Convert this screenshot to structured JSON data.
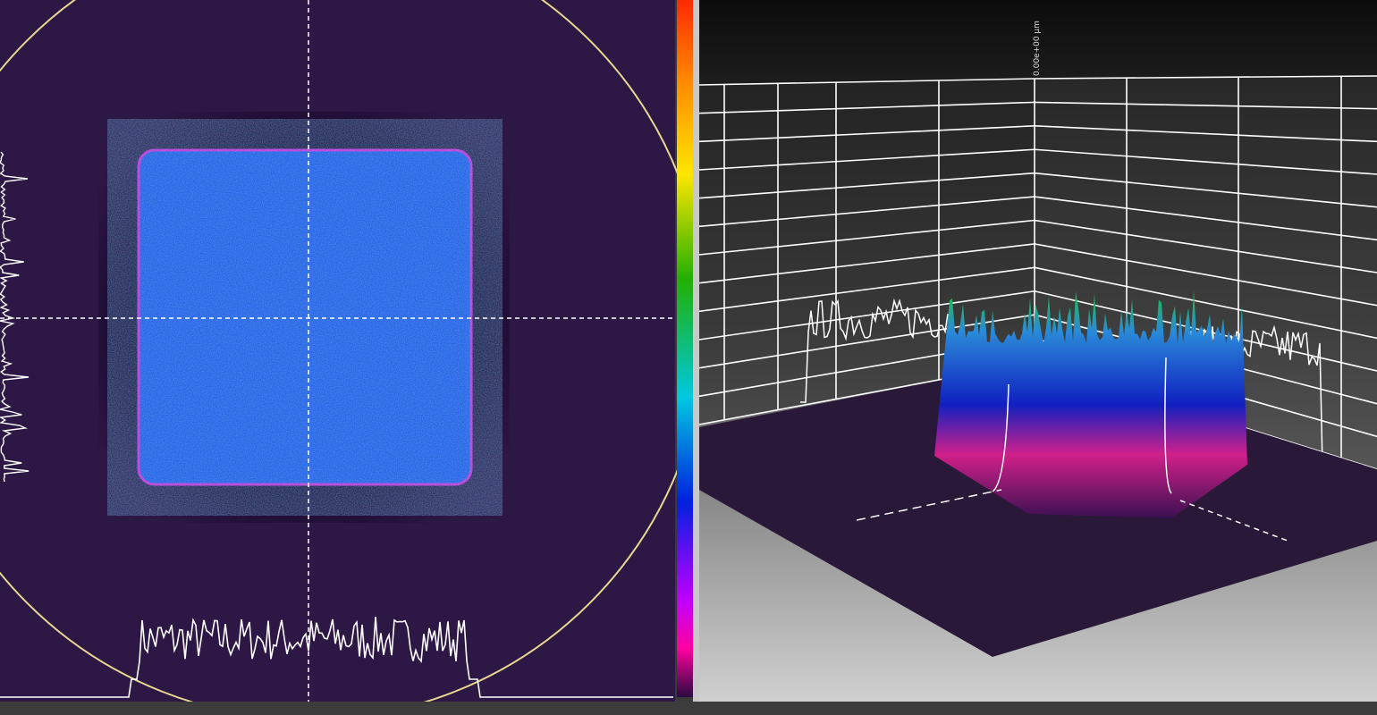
{
  "view3d": {
    "z_axis_label": "0.00e+00 µm"
  }
}
